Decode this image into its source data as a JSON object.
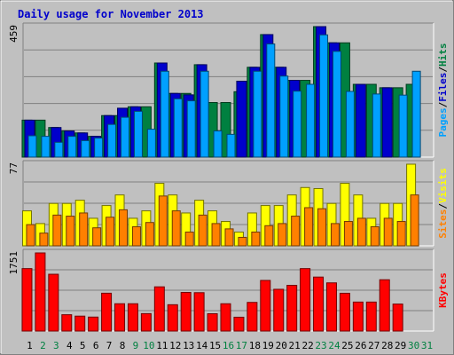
{
  "chart_data": {
    "type": "bar",
    "title": "Daily usage for November 2013",
    "categories": [
      "1",
      "2",
      "3",
      "4",
      "5",
      "6",
      "7",
      "8",
      "9",
      "10",
      "11",
      "12",
      "13",
      "14",
      "15",
      "16",
      "17",
      "18",
      "19",
      "20",
      "21",
      "22",
      "23",
      "24",
      "25",
      "26",
      "27",
      "28",
      "29",
      "30",
      "31"
    ],
    "weekend_days": [
      "2",
      "3",
      "9",
      "10",
      "16",
      "17",
      "23",
      "24",
      "30",
      "31"
    ],
    "panels": [
      {
        "id": "pages-files-hits",
        "ymax": 459,
        "ymax_label": "459",
        "side_label": [
          "Pages",
          "Files",
          "Hits"
        ],
        "series": [
          {
            "name": "Hits",
            "color": "#008040",
            "values": [
              130,
              130,
              104,
              92,
              85,
              73,
              146,
              146,
              177,
              177,
              331,
              224,
              224,
              325,
              192,
              192,
              230,
              316,
              431,
              316,
              270,
              270,
              459,
              402,
              402,
              256,
              256,
              244,
              244,
              256,
              0
            ]
          },
          {
            "name": "Files",
            "color": "#0000cc",
            "values": [
              130,
              0,
              104,
              92,
              85,
              73,
              146,
              172,
              177,
              0,
              331,
              224,
              219,
              325,
              0,
              0,
              267,
              316,
              431,
              316,
              270,
              0,
              459,
              402,
              0,
              256,
              0,
              244,
              0,
              0,
              0
            ]
          },
          {
            "name": "Pages",
            "color": "#00a0ff",
            "values": [
              75,
              73,
              52,
              73,
              58,
              67,
              115,
              140,
              161,
              98,
              302,
              205,
              198,
              302,
              92,
              80,
              0,
              302,
              398,
              285,
              232,
              256,
              430,
              372,
              231,
              0,
              222,
              0,
              218,
              302,
              0
            ]
          }
        ]
      },
      {
        "id": "sites-visits",
        "ymax": 77,
        "ymax_label": "77",
        "side_label": [
          "Sites",
          "Visits"
        ],
        "series": [
          {
            "name": "Visits",
            "color": "#ffff00",
            "values": [
              33,
              21,
              40,
              40,
              43,
              26,
              38,
              48,
              26,
              33,
              59,
              48,
              31,
              43,
              33,
              23,
              13,
              31,
              38,
              38,
              48,
              55,
              54,
              40,
              59,
              48,
              26,
              40,
              40,
              77,
              0
            ]
          },
          {
            "name": "Sites",
            "color": "#ff8000",
            "values": [
              20,
              12,
              29,
              28,
              31,
              17,
              27,
              34,
              18,
              22,
              47,
              33,
              13,
              29,
              21,
              16,
              8,
              13,
              19,
              21,
              28,
              36,
              35,
              21,
              23,
              26,
              18,
              26,
              23,
              48,
              0
            ]
          }
        ]
      },
      {
        "id": "kbytes",
        "ymax": 1751,
        "ymax_label": "1751",
        "side_label": [
          "KBytes"
        ],
        "series": [
          {
            "name": "KBytes",
            "color": "#ff0000",
            "values": [
              1400,
              1751,
              1273,
              366,
              334,
              313,
              848,
              612,
              612,
              390,
              991,
              590,
              865,
              860,
              388,
              612,
              310,
              642,
              1135,
              936,
              1025,
              1400,
              1210,
              1080,
              847,
              650,
              650,
              1150,
              605,
              0,
              0
            ]
          }
        ]
      }
    ]
  }
}
